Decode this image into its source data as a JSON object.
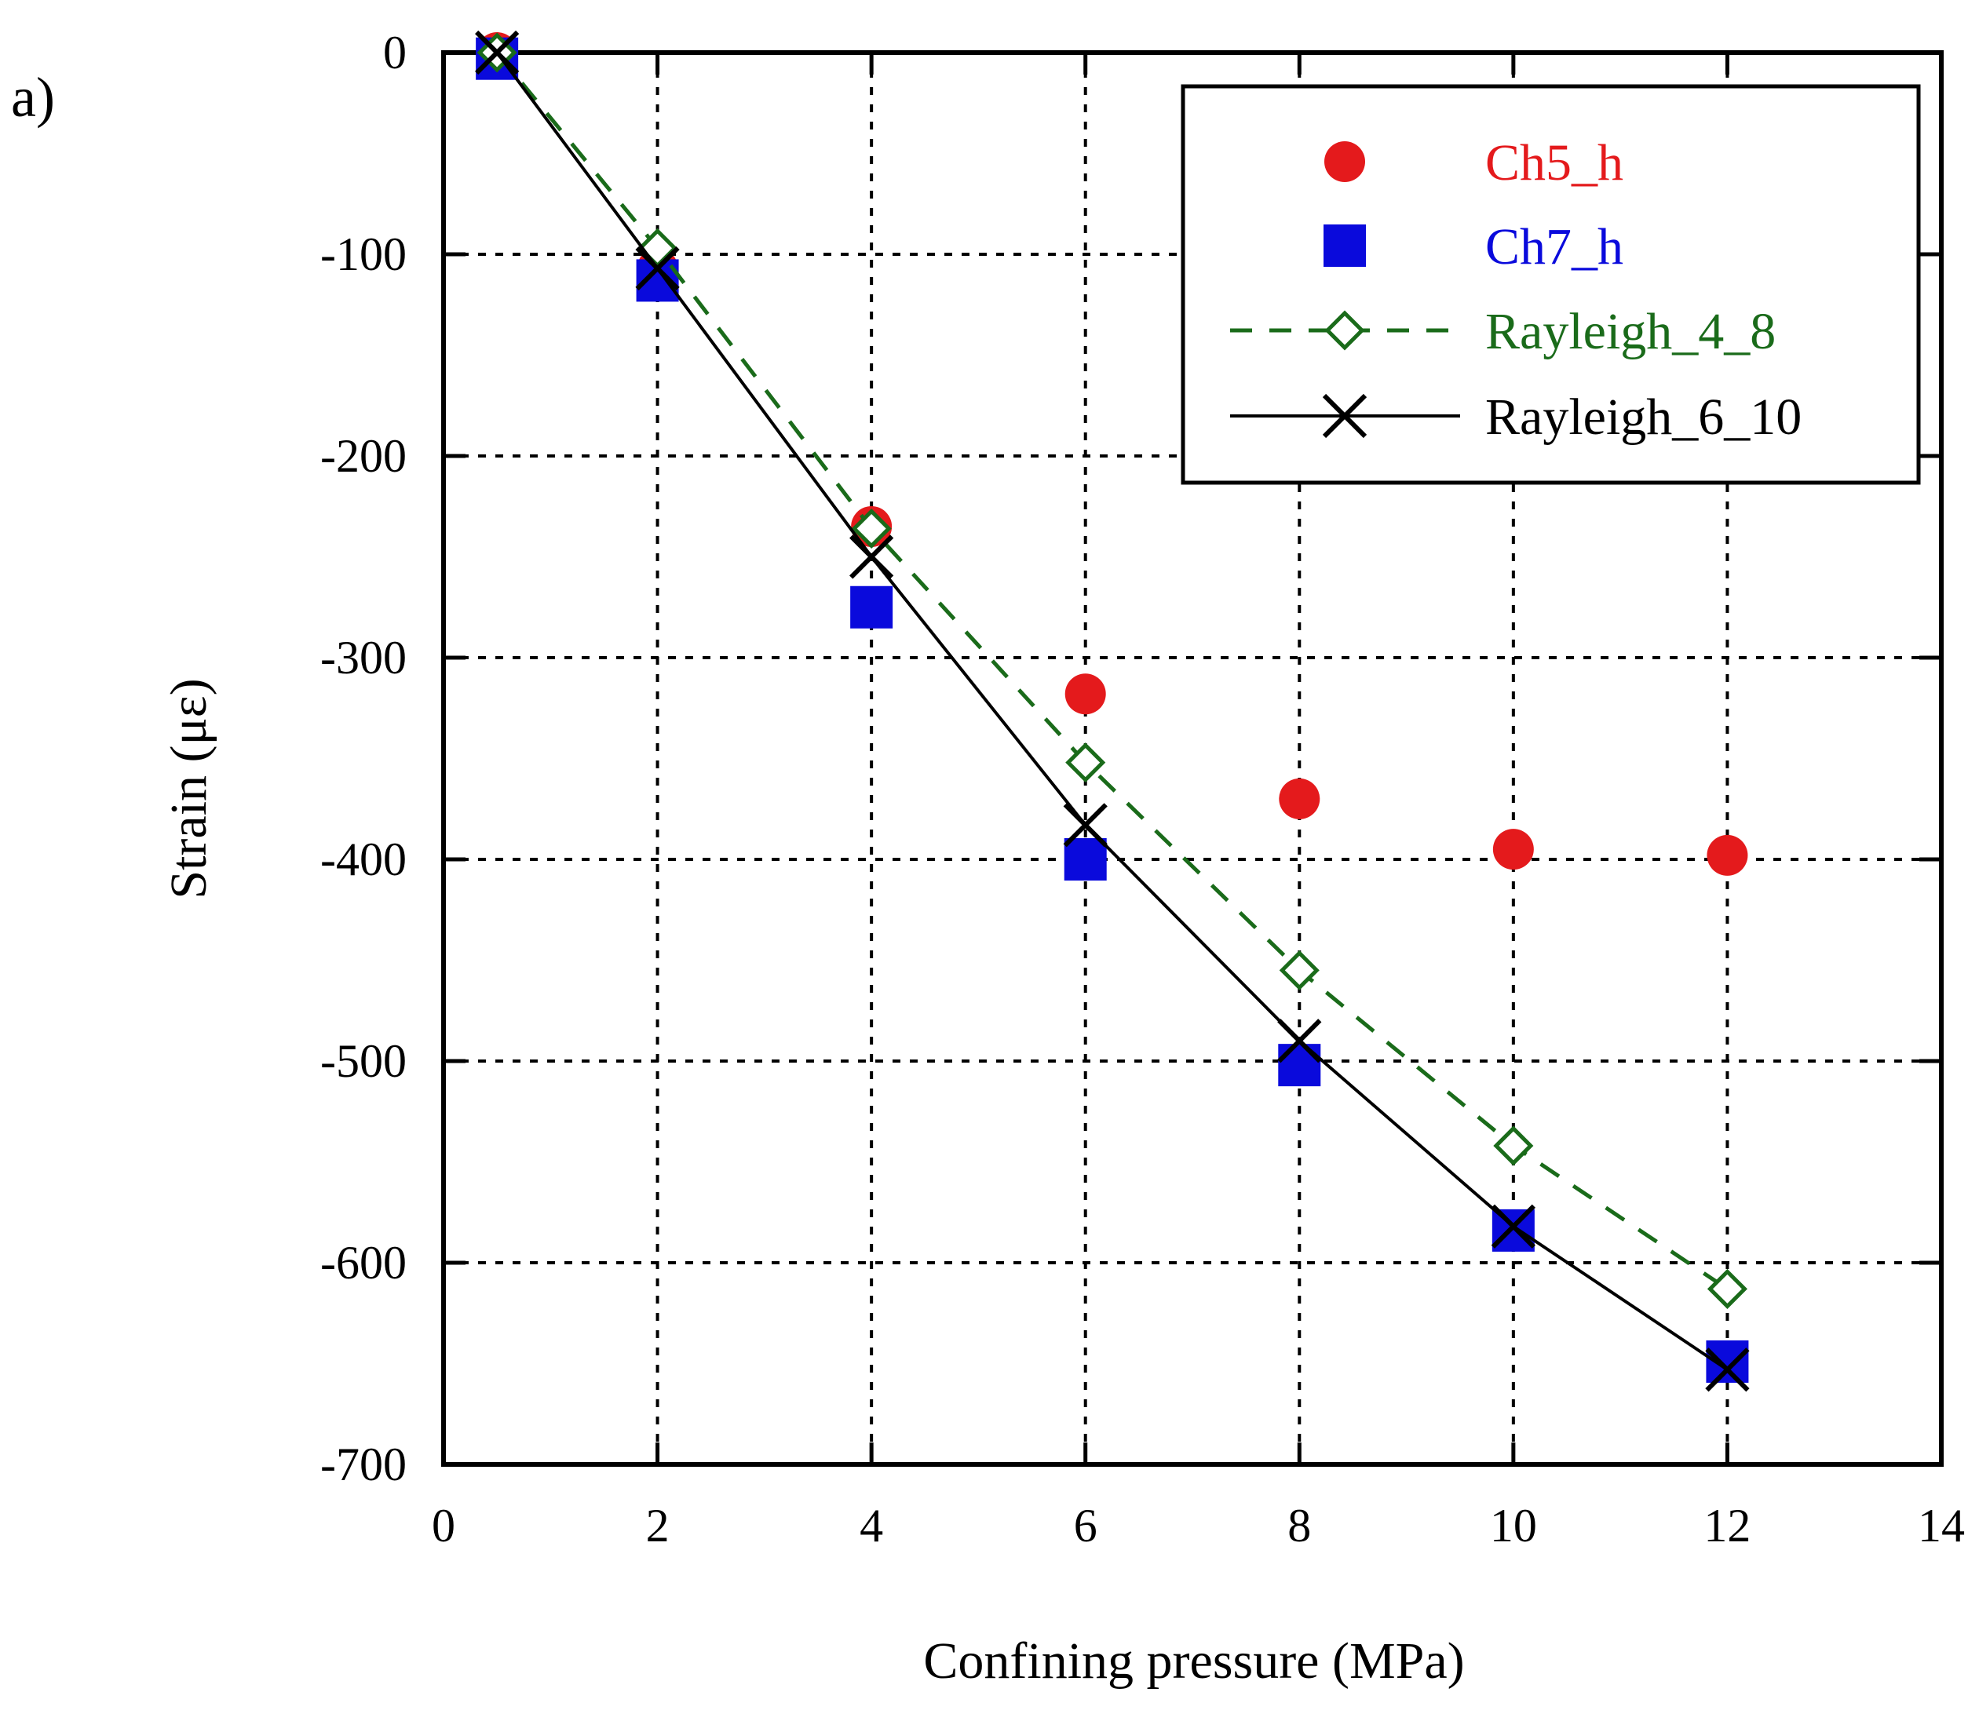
{
  "chart_data": {
    "type": "scatter",
    "panel_label": "a)",
    "xlabel": "Confining pressure (MPa)",
    "ylabel": "Strain (με)",
    "xlim": [
      0,
      14
    ],
    "ylim": [
      -700,
      0
    ],
    "xticks": [
      0,
      2,
      4,
      6,
      8,
      10,
      12,
      14
    ],
    "yticks": [
      0,
      -100,
      -200,
      -300,
      -400,
      -500,
      -600,
      -700
    ],
    "grid": true,
    "legend_position": "top-right",
    "series": [
      {
        "name": "Ch5_h",
        "marker": "circle",
        "color": "#e41a1c",
        "line": "none",
        "x": [
          0.5,
          2,
          4,
          6,
          8,
          10,
          12
        ],
        "y": [
          0,
          -107,
          -235,
          -318,
          -370,
          -395,
          -398
        ]
      },
      {
        "name": "Ch7_h",
        "marker": "square",
        "color": "#0a0adc",
        "line": "none",
        "x": [
          0.5,
          2,
          4,
          6,
          8,
          10,
          12
        ],
        "y": [
          -3,
          -113,
          -275,
          -400,
          -502,
          -584,
          -649
        ]
      },
      {
        "name": "Rayleigh_4_8",
        "marker": "open-diamond",
        "color": "#1a6b1a",
        "line": "dashed",
        "x": [
          0.5,
          2,
          4,
          6,
          8,
          10,
          12
        ],
        "y": [
          0,
          -97,
          -236,
          -352,
          -455,
          -542,
          -613
        ]
      },
      {
        "name": "Rayleigh_6_10",
        "marker": "x",
        "color": "#000000",
        "line": "solid",
        "x": [
          0.5,
          2,
          4,
          6,
          8,
          10,
          12
        ],
        "y": [
          0,
          -107,
          -250,
          -383,
          -490,
          -582,
          -653
        ]
      }
    ]
  }
}
